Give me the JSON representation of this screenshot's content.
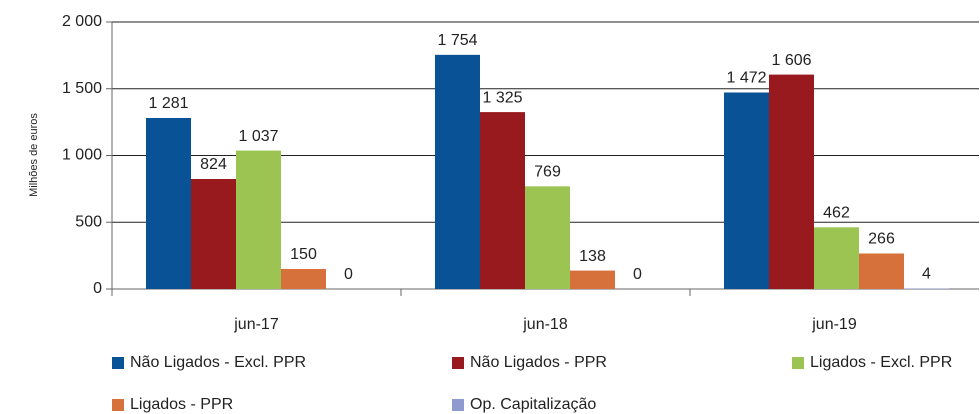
{
  "chart_data": {
    "type": "bar",
    "y_label": "Milhões de euros",
    "categories": [
      "jun-17",
      "jun-18",
      "jun-19"
    ],
    "series": [
      {
        "name": "Não Ligados - Excl. PPR",
        "color": "#0a5296",
        "values": [
          1281,
          1754,
          1472
        ],
        "value_labels": [
          "1 281",
          "1 754",
          "1 472"
        ]
      },
      {
        "name": "Não Ligados - PPR",
        "color": "#98191e",
        "values": [
          824,
          1325,
          1606
        ],
        "value_labels": [
          "824",
          "1 325",
          "1 606"
        ]
      },
      {
        "name": "Ligados - Excl. PPR",
        "color": "#9bc453",
        "values": [
          1037,
          769,
          462
        ],
        "value_labels": [
          "1 037",
          "769",
          "462"
        ]
      },
      {
        "name": "Ligados - PPR",
        "color": "#d6713b",
        "values": [
          150,
          138,
          266
        ],
        "value_labels": [
          "150",
          "138",
          "266"
        ]
      },
      {
        "name": "Op. Capitalização",
        "color": "#8f9ad0",
        "values": [
          0,
          0,
          4
        ],
        "value_labels": [
          "0",
          "0",
          "4"
        ]
      }
    ],
    "ylim": [
      0,
      2000
    ],
    "yticks": [
      0,
      500,
      {
        "value": 1000,
        "label": "1 000"
      },
      {
        "value": 1500,
        "label": "1 500"
      },
      {
        "value": 2000,
        "label": "2 000"
      }
    ],
    "grid": true
  }
}
